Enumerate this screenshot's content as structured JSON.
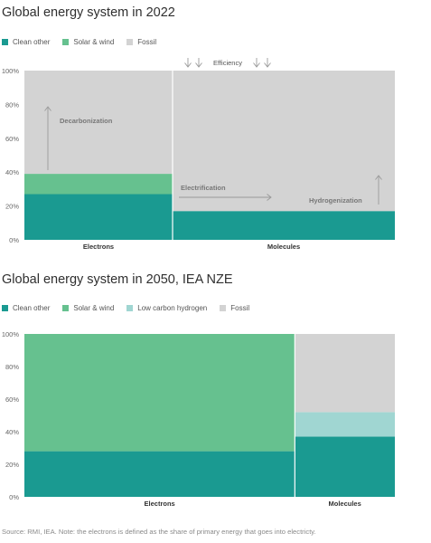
{
  "colors": {
    "clean_other": "#1a9a91",
    "solar_wind": "#66c18f",
    "low_carbon_hydrogen": "#a0d6d2",
    "fossil": "#d3d3d3"
  },
  "source": "Source: RMI, IEA. Note: the electrons is defined as the share of primary energy that goes into electricty.",
  "chart_data": [
    {
      "type": "bar",
      "subtype": "marimekko",
      "title": "Global energy system in 2022",
      "legend": [
        {
          "name": "Clean other",
          "color": "#1a9a91"
        },
        {
          "name": "Solar & wind",
          "color": "#66c18f"
        },
        {
          "name": "Fossil",
          "color": "#d3d3d3"
        }
      ],
      "categories": [
        "Electrons",
        "Molecules"
      ],
      "category_shares": [
        40,
        60
      ],
      "series": [
        {
          "name": "Clean other",
          "values": [
            27,
            17
          ]
        },
        {
          "name": "Solar & wind",
          "values": [
            12,
            0
          ]
        },
        {
          "name": "Fossil",
          "values": [
            61,
            83
          ]
        }
      ],
      "ylim": [
        0,
        100
      ],
      "yticks": [
        "0%",
        "20%",
        "40%",
        "60%",
        "80%",
        "100%"
      ],
      "annotations": {
        "efficiency": "Efficiency",
        "decarbonization": "Decarbonization",
        "electrification": "Electrification",
        "hydrogenization": "Hydrogenization"
      }
    },
    {
      "type": "bar",
      "subtype": "marimekko",
      "title": "Global energy system in 2050, IEA NZE",
      "legend": [
        {
          "name": "Clean other",
          "color": "#1a9a91"
        },
        {
          "name": "Solar & wind",
          "color": "#66c18f"
        },
        {
          "name": "Low carbon hydrogen",
          "color": "#a0d6d2"
        },
        {
          "name": "Fossil",
          "color": "#d3d3d3"
        }
      ],
      "categories": [
        "Electrons",
        "Molecules"
      ],
      "category_shares": [
        73,
        27
      ],
      "series": [
        {
          "name": "Clean other",
          "values": [
            28,
            37
          ]
        },
        {
          "name": "Solar & wind",
          "values": [
            72,
            0
          ]
        },
        {
          "name": "Low carbon hydrogen",
          "values": [
            0,
            15
          ]
        },
        {
          "name": "Fossil",
          "values": [
            0,
            48
          ]
        }
      ],
      "ylim": [
        0,
        100
      ],
      "yticks": [
        "0%",
        "20%",
        "40%",
        "60%",
        "80%",
        "100%"
      ]
    }
  ]
}
